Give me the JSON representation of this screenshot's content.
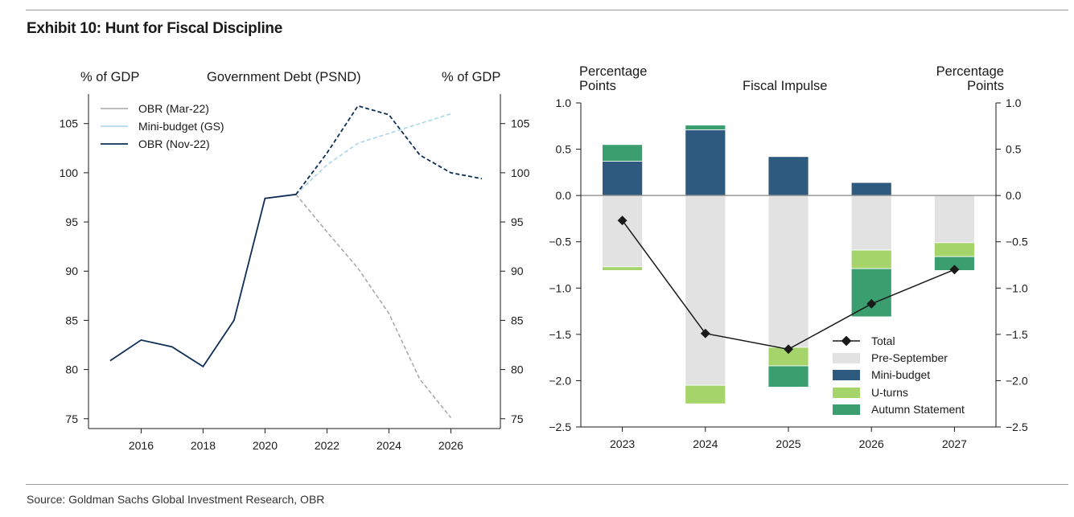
{
  "exhibit_title": "Exhibit 10: Hunt for Fiscal Discipline",
  "source": "Source: Goldman Sachs Global Investment Research, OBR",
  "colors": {
    "obr_mar22": "#a6a6a6",
    "mini_budget_gs": "#a8d3ea",
    "obr_nov22": "#0e2f55",
    "pre_september": "#e2e2e2",
    "mini_budget": "#2e5a7f",
    "u_turns": "#a5d46a",
    "autumn_statement": "#3a9e6e",
    "total": "#1a1a1a",
    "zero_line": "#999999"
  },
  "chart_data": [
    {
      "type": "line",
      "title": "Government Debt (PSND)",
      "ylabel_left": "% of GDP",
      "ylabel_right": "% of GDP",
      "xlim": [
        2014.3,
        2027.6
      ],
      "ylim": [
        74,
        108
      ],
      "xticks": [
        2016,
        2018,
        2020,
        2022,
        2024,
        2026
      ],
      "yticks": [
        75,
        80,
        85,
        90,
        95,
        100,
        105
      ],
      "legend": [
        "OBR (Mar-22)",
        "Mini-budget (GS)",
        "OBR (Nov-22)"
      ],
      "series": [
        {
          "name": "OBR (Mar-22)",
          "style": "dashed",
          "x": [
            2021,
            2022,
            2023,
            2024,
            2025,
            2026
          ],
          "y": [
            97.8,
            94.0,
            90.3,
            85.7,
            79.0,
            75.1
          ]
        },
        {
          "name": "Mini-budget (GS)",
          "style": "dashed",
          "x": [
            2021,
            2022,
            2023,
            2024,
            2025,
            2026
          ],
          "y": [
            97.8,
            100.8,
            103.0,
            104.0,
            105.0,
            106.0
          ]
        },
        {
          "name": "OBR (Nov-22)",
          "style": "solid",
          "x": [
            2015,
            2016,
            2017,
            2018,
            2019,
            2020,
            2021
          ],
          "y": [
            80.9,
            83.0,
            82.3,
            80.3,
            85.0,
            97.4,
            97.8
          ]
        },
        {
          "name": "OBR (Nov-22)",
          "style": "dashed",
          "x": [
            2021,
            2022,
            2023,
            2024,
            2025,
            2026,
            2027
          ],
          "y": [
            97.8,
            102.0,
            106.8,
            105.9,
            101.8,
            100.0,
            99.4
          ]
        }
      ]
    },
    {
      "type": "bar",
      "title": "Fiscal Impulse",
      "ylabel_left": [
        "Percentage",
        "Points"
      ],
      "ylabel_right": [
        "Percentage",
        "Points"
      ],
      "ylim": [
        -2.5,
        1.0
      ],
      "yticks": [
        1.0,
        0.5,
        0.0,
        -0.5,
        -1.0,
        -1.5,
        -2.0,
        -2.5
      ],
      "ytick_labels": [
        "1.0",
        "0.5",
        "0.0",
        "−0.5",
        "−1.0",
        "−1.5",
        "−2.0",
        "−2.5"
      ],
      "categories": [
        "2023",
        "2024",
        "2025",
        "2026",
        "2027"
      ],
      "stacked": true,
      "series": [
        {
          "name": "Pre-September",
          "values": [
            -0.77,
            -2.05,
            -1.64,
            -0.59,
            -0.51
          ]
        },
        {
          "name": "Mini-budget",
          "values": [
            0.37,
            0.71,
            0.42,
            0.14,
            0.0
          ]
        },
        {
          "name": "U-turns",
          "values": [
            -0.04,
            -0.2,
            -0.2,
            -0.2,
            -0.15
          ]
        },
        {
          "name": "Autumn Statement",
          "values": [
            0.18,
            0.05,
            -0.23,
            -0.52,
            -0.15
          ]
        }
      ],
      "total": {
        "name": "Total",
        "values": [
          -0.27,
          -1.49,
          -1.66,
          -1.17,
          -0.8
        ]
      },
      "legend": [
        "Total",
        "Pre-September",
        "Mini-budget",
        "U-turns",
        "Autumn Statement"
      ],
      "legend_position": "bottom-right"
    }
  ]
}
